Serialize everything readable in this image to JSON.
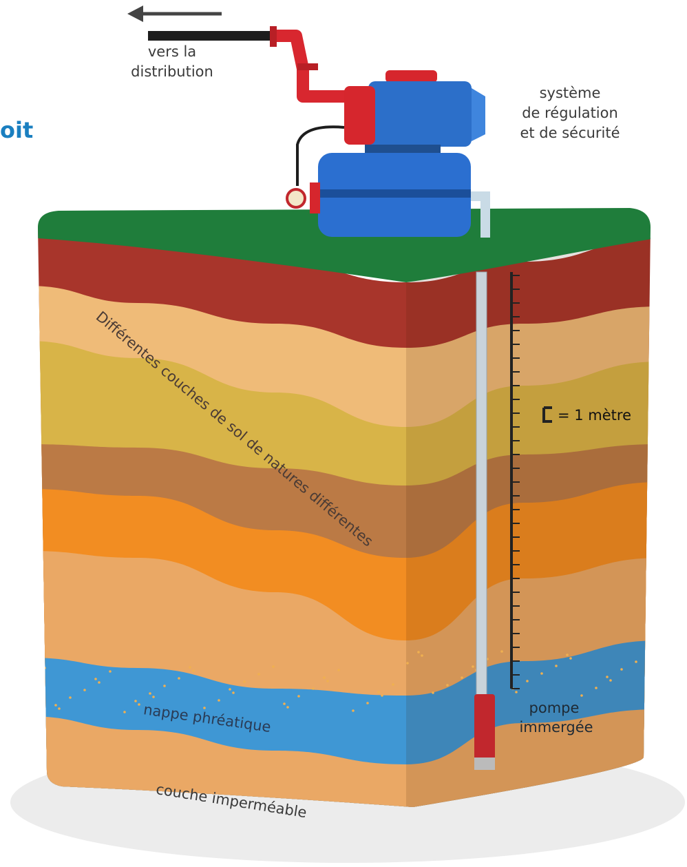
{
  "cut_text": "oit",
  "labels": {
    "distribution": [
      "vers la",
      "distribution"
    ],
    "regulation": [
      "système",
      "de régulation",
      "et de sécurité"
    ],
    "scale": "= 1 mètre",
    "soil_layers": "Différentes couches de sol de natures différentes",
    "pump": [
      "pompe",
      "immergée"
    ],
    "water_table": "nappe phréatique",
    "impermeable": "couche imperméable"
  }
}
